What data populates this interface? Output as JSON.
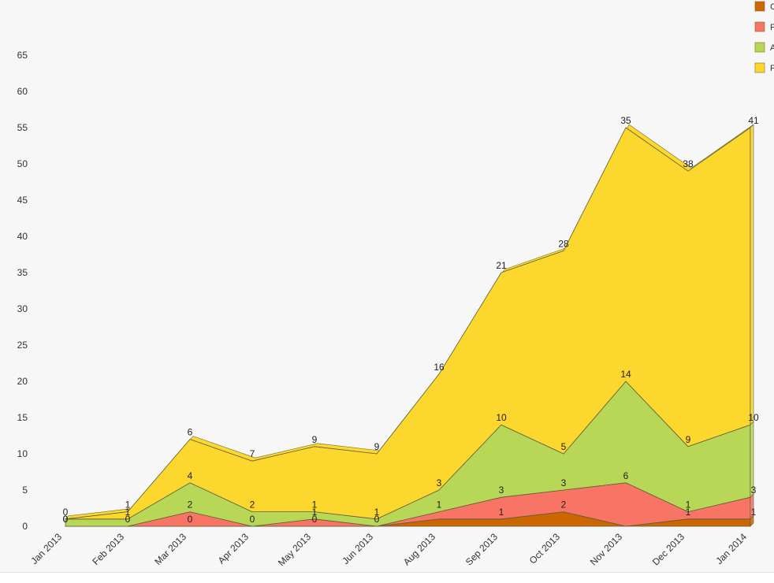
{
  "chart_data": {
    "type": "area",
    "stacked": true,
    "categories": [
      "Jan 2013",
      "Feb 2013",
      "Mar 2013",
      "Apr 2013",
      "May 2013",
      "Jun 2013",
      "Aug 2013",
      "Sep 2013",
      "Oct 2013",
      "Nov 2013",
      "Dec 2013",
      "Jan 2014"
    ],
    "series": [
      {
        "name": "C",
        "color": "#cc6600",
        "values": [
          0,
          0,
          0,
          0,
          0,
          0,
          1,
          1,
          2,
          0,
          1,
          1
        ]
      },
      {
        "name": "F",
        "color": "#f87464",
        "values": [
          0,
          0,
          2,
          0,
          1,
          0,
          1,
          3,
          3,
          6,
          1,
          3
        ]
      },
      {
        "name": "A",
        "color": "#b9d756",
        "values": [
          1,
          1,
          4,
          2,
          1,
          1,
          3,
          10,
          5,
          14,
          9,
          10
        ]
      },
      {
        "name": "F",
        "color": "#fcd72e",
        "values": [
          0,
          1,
          6,
          7,
          9,
          9,
          16,
          21,
          28,
          35,
          38,
          41
        ]
      }
    ],
    "ylim": [
      0,
      65
    ],
    "yticks": [
      0,
      5,
      10,
      15,
      20,
      25,
      30,
      35,
      40,
      45,
      50,
      55,
      60,
      65
    ],
    "title": "",
    "xlabel": "",
    "ylabel": "",
    "grid": false,
    "legend": "top-right",
    "labels": [
      [
        "0",
        "0",
        "0",
        "0",
        "0",
        "0",
        "",
        "1",
        "2",
        "",
        "1",
        "1"
      ],
      [
        "0",
        "",
        "2",
        "",
        "1",
        "",
        "1",
        "3",
        "3",
        "6",
        "1",
        "3"
      ],
      [
        "",
        "1",
        "4",
        "2",
        "1",
        "1",
        "3",
        "10",
        "5",
        "14",
        "9",
        "10"
      ],
      [
        "0",
        "1",
        "6",
        "7",
        "9",
        "9",
        "16",
        "21",
        "28",
        "35",
        "38",
        "41"
      ]
    ]
  }
}
